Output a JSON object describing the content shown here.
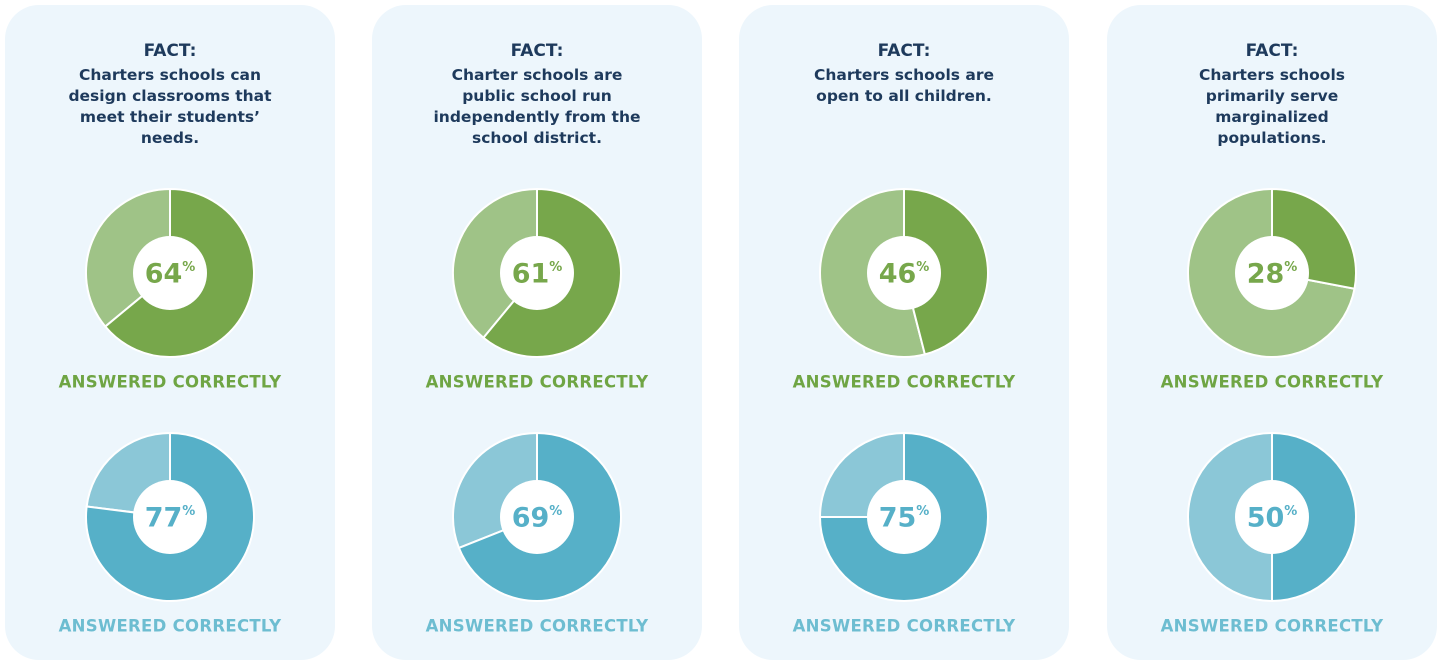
{
  "chart_data": [
    {
      "type": "donut",
      "heading": "FACT:",
      "title": "Charters schools can design classrooms that meet their students’ needs.",
      "series": [
        {
          "name": "ANSWERED CORRECTLY",
          "colors": [
            "#77a74b",
            "#9fc387"
          ],
          "label_color": "#6fa544",
          "values": [
            64
          ],
          "value_labels": [
            "64%"
          ]
        },
        {
          "name": "ANSWERED CORRECTLY",
          "colors": [
            "#56b0c8",
            "#8bc7d7"
          ],
          "label_color": "#6dbdd1",
          "values": [
            77
          ],
          "value_labels": [
            "77%"
          ]
        }
      ]
    },
    {
      "type": "donut",
      "heading": "FACT:",
      "title": "Charter schools are public school run independently from the school district.",
      "series": [
        {
          "name": "ANSWERED CORRECTLY",
          "colors": [
            "#77a74b",
            "#9fc387"
          ],
          "label_color": "#6fa544",
          "values": [
            61
          ],
          "value_labels": [
            "61%"
          ]
        },
        {
          "name": "ANSWERED CORRECTLY",
          "colors": [
            "#56b0c8",
            "#8bc7d7"
          ],
          "label_color": "#6dbdd1",
          "values": [
            69
          ],
          "value_labels": [
            "69%"
          ]
        }
      ]
    },
    {
      "type": "donut",
      "heading": "FACT:",
      "title": "Charters schools are open to all children.",
      "series": [
        {
          "name": "ANSWERED CORRECTLY",
          "colors": [
            "#77a74b",
            "#9fc387"
          ],
          "label_color": "#6fa544",
          "values": [
            46
          ],
          "value_labels": [
            "46%"
          ]
        },
        {
          "name": "ANSWERED CORRECTLY",
          "colors": [
            "#56b0c8",
            "#8bc7d7"
          ],
          "label_color": "#6dbdd1",
          "values": [
            75
          ],
          "value_labels": [
            "75%"
          ]
        }
      ]
    },
    {
      "type": "donut",
      "heading": "FACT:",
      "title": "Charters schools primarily serve marginalized populations.",
      "series": [
        {
          "name": "ANSWERED CORRECTLY",
          "colors": [
            "#77a74b",
            "#9fc387"
          ],
          "label_color": "#6fa544",
          "values": [
            28
          ],
          "value_labels": [
            "28%"
          ]
        },
        {
          "name": "ANSWERED CORRECTLY",
          "colors": [
            "#56b0c8",
            "#8bc7d7"
          ],
          "label_color": "#6dbdd1",
          "values": [
            50
          ],
          "value_labels": [
            "50%"
          ]
        }
      ]
    }
  ]
}
